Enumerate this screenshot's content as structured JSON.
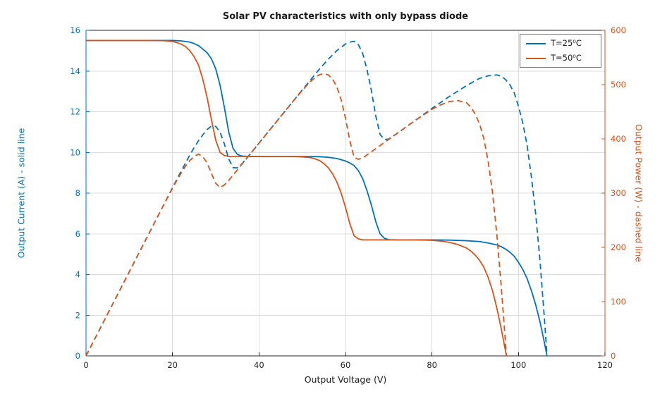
{
  "chart_data": {
    "type": "line",
    "title": "Solar PV characteristics with only bypass diode",
    "xlabel": "Output Voltage (V)",
    "ylabel_left": "Output Current (A) - solid line",
    "ylabel_right": "Output Power (W) - dashed line",
    "xlim": [
      0,
      120
    ],
    "ylim_left": [
      0,
      16
    ],
    "ylim_right": [
      0,
      600
    ],
    "xticks": [
      0,
      20,
      40,
      60,
      80,
      100,
      120
    ],
    "yticks_left": [
      0,
      2,
      4,
      6,
      8,
      10,
      12,
      14,
      16
    ],
    "yticks_right": [
      0,
      100,
      200,
      300,
      400,
      500,
      600
    ],
    "grid": true,
    "colors": {
      "left_axis": "#0072BD",
      "right_axis": "#D95319",
      "grid": "#dcdcdc",
      "box": "#262626"
    },
    "legend": {
      "position": "top-right",
      "entries": [
        {
          "label": "T=25⁰C",
          "color": "#0072BD"
        },
        {
          "label": "T=50⁰C",
          "color": "#D95319"
        }
      ]
    },
    "series": [
      {
        "name": "current_T25",
        "axis": "left",
        "style": "solid",
        "color": "#0072BD",
        "points": [
          [
            0,
            15.5
          ],
          [
            5,
            15.5
          ],
          [
            10,
            15.5
          ],
          [
            15,
            15.5
          ],
          [
            20,
            15.5
          ],
          [
            22,
            15.48
          ],
          [
            24,
            15.42
          ],
          [
            25,
            15.35
          ],
          [
            26,
            15.25
          ],
          [
            27,
            15.08
          ],
          [
            28,
            14.9
          ],
          [
            29,
            14.6
          ],
          [
            30,
            14.1
          ],
          [
            31,
            13.3
          ],
          [
            32,
            12.2
          ],
          [
            33,
            11.0
          ],
          [
            34,
            10.2
          ],
          [
            35,
            9.9
          ],
          [
            36,
            9.82
          ],
          [
            38,
            9.8
          ],
          [
            42,
            9.8
          ],
          [
            46,
            9.8
          ],
          [
            50,
            9.8
          ],
          [
            54,
            9.79
          ],
          [
            56,
            9.76
          ],
          [
            58,
            9.7
          ],
          [
            60,
            9.58
          ],
          [
            61,
            9.48
          ],
          [
            62,
            9.35
          ],
          [
            63,
            9.1
          ],
          [
            64,
            8.7
          ],
          [
            65,
            8.1
          ],
          [
            66,
            7.4
          ],
          [
            67,
            6.6
          ],
          [
            68,
            6.0
          ],
          [
            69,
            5.78
          ],
          [
            70,
            5.71
          ],
          [
            72,
            5.7
          ],
          [
            76,
            5.7
          ],
          [
            80,
            5.7
          ],
          [
            84,
            5.69
          ],
          [
            88,
            5.66
          ],
          [
            91,
            5.62
          ],
          [
            93,
            5.55
          ],
          [
            95,
            5.45
          ],
          [
            96,
            5.37
          ],
          [
            97,
            5.25
          ],
          [
            98,
            5.1
          ],
          [
            99,
            4.9
          ],
          [
            100,
            4.6
          ],
          [
            101,
            4.25
          ],
          [
            102,
            3.8
          ],
          [
            103,
            3.2
          ],
          [
            104,
            2.5
          ],
          [
            105,
            1.65
          ],
          [
            106,
            0.65
          ],
          [
            106.6,
            0
          ]
        ]
      },
      {
        "name": "current_T50",
        "axis": "left",
        "style": "solid",
        "color": "#D95319",
        "points": [
          [
            0,
            15.5
          ],
          [
            5,
            15.5
          ],
          [
            10,
            15.5
          ],
          [
            15,
            15.5
          ],
          [
            18,
            15.49
          ],
          [
            20,
            15.45
          ],
          [
            21,
            15.4
          ],
          [
            22,
            15.32
          ],
          [
            23,
            15.2
          ],
          [
            24,
            15.0
          ],
          [
            25,
            14.7
          ],
          [
            26,
            14.3
          ],
          [
            27,
            13.6
          ],
          [
            28,
            12.7
          ],
          [
            29,
            11.6
          ],
          [
            30,
            10.6
          ],
          [
            31,
            10.0
          ],
          [
            32,
            9.85
          ],
          [
            33,
            9.8
          ],
          [
            36,
            9.8
          ],
          [
            40,
            9.8
          ],
          [
            44,
            9.8
          ],
          [
            48,
            9.8
          ],
          [
            50,
            9.78
          ],
          [
            52,
            9.74
          ],
          [
            53,
            9.68
          ],
          [
            54,
            9.6
          ],
          [
            55,
            9.45
          ],
          [
            56,
            9.25
          ],
          [
            57,
            8.95
          ],
          [
            58,
            8.55
          ],
          [
            59,
            8.0
          ],
          [
            60,
            7.3
          ],
          [
            61,
            6.5
          ],
          [
            62,
            5.9
          ],
          [
            63,
            5.75
          ],
          [
            64,
            5.7
          ],
          [
            68,
            5.7
          ],
          [
            72,
            5.7
          ],
          [
            76,
            5.7
          ],
          [
            80,
            5.68
          ],
          [
            82,
            5.64
          ],
          [
            84,
            5.58
          ],
          [
            86,
            5.47
          ],
          [
            88,
            5.3
          ],
          [
            89,
            5.15
          ],
          [
            90,
            4.95
          ],
          [
            91,
            4.7
          ],
          [
            92,
            4.35
          ],
          [
            93,
            3.85
          ],
          [
            94,
            3.2
          ],
          [
            95,
            2.35
          ],
          [
            96,
            1.35
          ],
          [
            97,
            0.25
          ],
          [
            97.2,
            0
          ]
        ]
      },
      {
        "name": "power_T25",
        "axis": "right",
        "style": "dashed",
        "color": "#0072BD",
        "points": [
          [
            0,
            0
          ],
          [
            5,
            77.5
          ],
          [
            10,
            155
          ],
          [
            15,
            232.5
          ],
          [
            20,
            310
          ],
          [
            22,
            340.6
          ],
          [
            24,
            370.1
          ],
          [
            25,
            383.8
          ],
          [
            26,
            396.5
          ],
          [
            27,
            407.2
          ],
          [
            28,
            417.2
          ],
          [
            29,
            423.4
          ],
          [
            30,
            423
          ],
          [
            31,
            412.3
          ],
          [
            32,
            390.4
          ],
          [
            33,
            363
          ],
          [
            34,
            346.8
          ],
          [
            35,
            346.5
          ],
          [
            36,
            353.5
          ],
          [
            38,
            372.4
          ],
          [
            42,
            411.6
          ],
          [
            46,
            450.8
          ],
          [
            50,
            490
          ],
          [
            54,
            528.7
          ],
          [
            56,
            546.6
          ],
          [
            58,
            562.6
          ],
          [
            60,
            574.8
          ],
          [
            61,
            578.3
          ],
          [
            62,
            579.7
          ],
          [
            63,
            573.3
          ],
          [
            64,
            556.8
          ],
          [
            65,
            526.5
          ],
          [
            66,
            488.4
          ],
          [
            67,
            442.2
          ],
          [
            68,
            408
          ],
          [
            69,
            398.8
          ],
          [
            70,
            399.7
          ],
          [
            72,
            410.4
          ],
          [
            76,
            433.2
          ],
          [
            80,
            456
          ],
          [
            84,
            478
          ],
          [
            88,
            498.1
          ],
          [
            91,
            511.4
          ],
          [
            93,
            516.2
          ],
          [
            95,
            517.8
          ],
          [
            96,
            515.5
          ],
          [
            97,
            509.3
          ],
          [
            98,
            499.8
          ],
          [
            99,
            485.1
          ],
          [
            100,
            460
          ],
          [
            101,
            429.3
          ],
          [
            102,
            387.6
          ],
          [
            103,
            329.6
          ],
          [
            104,
            260
          ],
          [
            105,
            173.3
          ],
          [
            106,
            68.9
          ],
          [
            106.6,
            0
          ]
        ]
      },
      {
        "name": "power_T50",
        "axis": "right",
        "style": "dashed",
        "color": "#D95319",
        "points": [
          [
            0,
            0
          ],
          [
            5,
            77.5
          ],
          [
            10,
            155
          ],
          [
            15,
            232.5
          ],
          [
            18,
            278.8
          ],
          [
            20,
            309
          ],
          [
            21,
            323.4
          ],
          [
            22,
            337
          ],
          [
            23,
            349.6
          ],
          [
            24,
            360
          ],
          [
            25,
            367.5
          ],
          [
            26,
            371.8
          ],
          [
            27,
            367.2
          ],
          [
            28,
            355.6
          ],
          [
            29,
            336.4
          ],
          [
            30,
            318
          ],
          [
            31,
            310
          ],
          [
            32,
            315.2
          ],
          [
            33,
            323.4
          ],
          [
            36,
            352.8
          ],
          [
            40,
            392
          ],
          [
            44,
            431.2
          ],
          [
            48,
            470.4
          ],
          [
            50,
            489
          ],
          [
            52,
            506.5
          ],
          [
            53,
            513
          ],
          [
            54,
            518.4
          ],
          [
            55,
            519.8
          ],
          [
            56,
            518
          ],
          [
            57,
            510.2
          ],
          [
            58,
            495.9
          ],
          [
            59,
            472
          ],
          [
            60,
            438
          ],
          [
            61,
            396.5
          ],
          [
            62,
            365.8
          ],
          [
            63,
            362.3
          ],
          [
            64,
            364.8
          ],
          [
            68,
            387.6
          ],
          [
            72,
            410.4
          ],
          [
            76,
            433.2
          ],
          [
            80,
            454.4
          ],
          [
            82,
            462.5
          ],
          [
            84,
            468.7
          ],
          [
            86,
            470.4
          ],
          [
            88,
            466.4
          ],
          [
            89,
            458.4
          ],
          [
            90,
            445.5
          ],
          [
            91,
            427.7
          ],
          [
            92,
            400.2
          ],
          [
            93,
            358.1
          ],
          [
            94,
            300.8
          ],
          [
            95,
            223.3
          ],
          [
            96,
            129.6
          ],
          [
            97,
            24.3
          ],
          [
            97.2,
            0
          ]
        ]
      }
    ]
  }
}
